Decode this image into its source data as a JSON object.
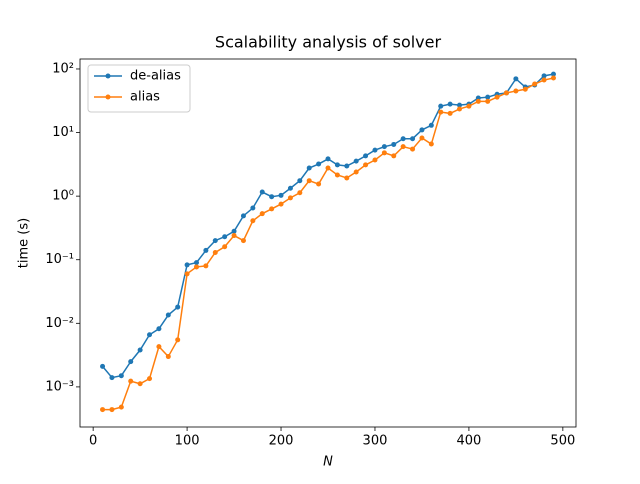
{
  "chart_data": {
    "type": "line",
    "title": "Scalability analysis of solver",
    "x_label": "N",
    "y_label": "time (s)",
    "x": [
      10,
      20,
      30,
      40,
      50,
      60,
      70,
      80,
      90,
      100,
      110,
      120,
      130,
      140,
      150,
      160,
      170,
      180,
      190,
      200,
      210,
      220,
      230,
      240,
      250,
      260,
      270,
      280,
      290,
      300,
      310,
      320,
      330,
      340,
      350,
      360,
      370,
      380,
      390,
      400,
      410,
      420,
      430,
      440,
      450,
      460,
      470,
      480,
      490
    ],
    "series": [
      {
        "name": "de-alias",
        "color": "#1f77b4",
        "values": [
          0.0021,
          0.0014,
          0.0015,
          0.0025,
          0.0038,
          0.0066,
          0.0082,
          0.0135,
          0.018,
          0.083,
          0.09,
          0.14,
          0.2,
          0.23,
          0.28,
          0.49,
          0.65,
          1.16,
          0.98,
          1.03,
          1.33,
          1.75,
          2.77,
          3.2,
          3.85,
          3.1,
          2.98,
          3.55,
          4.3,
          5.3,
          6.0,
          6.5,
          8.0,
          8.0,
          11,
          13,
          26,
          28,
          27,
          28,
          35,
          36,
          40,
          42,
          70,
          52,
          56,
          78,
          83
        ]
      },
      {
        "name": "alias",
        "color": "#ff7f0e",
        "values": [
          0.00044,
          0.00044,
          0.00048,
          0.00123,
          0.00112,
          0.00135,
          0.0043,
          0.003,
          0.0055,
          0.06,
          0.077,
          0.08,
          0.13,
          0.16,
          0.24,
          0.2,
          0.41,
          0.53,
          0.63,
          0.75,
          0.94,
          1.13,
          1.75,
          1.55,
          2.77,
          2.15,
          1.93,
          2.4,
          3.1,
          3.7,
          4.8,
          4.3,
          6.0,
          5.5,
          8.2,
          6.6,
          21,
          20,
          23.5,
          26,
          31,
          31,
          36,
          42,
          45,
          48,
          58,
          67,
          72
        ]
      }
    ],
    "xlim": [
      -14,
      514
    ],
    "xticks": [
      0,
      100,
      200,
      300,
      400,
      500
    ],
    "ylim": [
      0.000234,
      143.5
    ],
    "log_y": true,
    "yticks": [
      {
        "value": 0.001,
        "label": "10⁻³"
      },
      {
        "value": 0.01,
        "label": "10⁻²"
      },
      {
        "value": 0.1,
        "label": "10⁻¹"
      },
      {
        "value": 1,
        "label": "10⁰"
      },
      {
        "value": 10,
        "label": "10¹"
      },
      {
        "value": 100,
        "label": "10²"
      }
    ],
    "legend": "upper left",
    "grid": false
  }
}
